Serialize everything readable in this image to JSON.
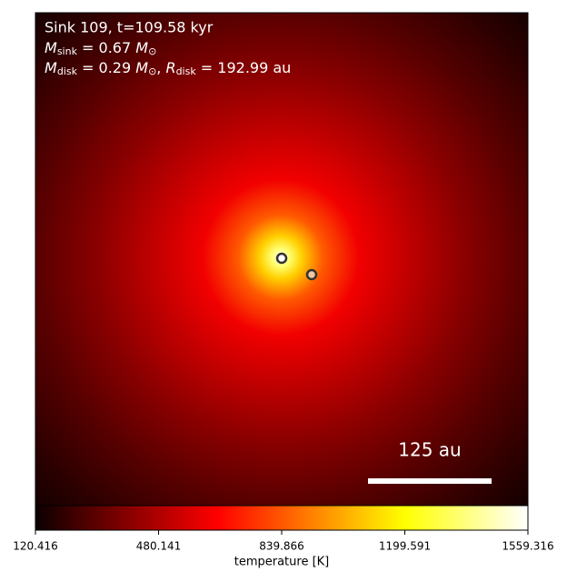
{
  "chart_data": {
    "type": "heatmap",
    "header": "Sink 109, t=109.58 kyr",
    "sink_mass": {
      "symbol": "M",
      "subscript": "sink",
      "value": " = 0.67 ",
      "unit": "M",
      "unit_subscript": "⊙"
    },
    "disk": {
      "symbol": "M",
      "subscript": "disk",
      "value": " = 0.29 ",
      "unit": "M",
      "unit_subscript": "⊙",
      "separator": ", ",
      "r_symbol": "R",
      "r_subscript": "disk",
      "r_value": " = 192.99 au"
    },
    "scale_bar": "125 au",
    "colorbar": {
      "label": "temperature [K]",
      "colormap": "hot",
      "lim": [
        120.416,
        1559.316
      ],
      "ticks": [
        120.416,
        480.141,
        839.866,
        1199.591,
        1559.316
      ]
    }
  }
}
